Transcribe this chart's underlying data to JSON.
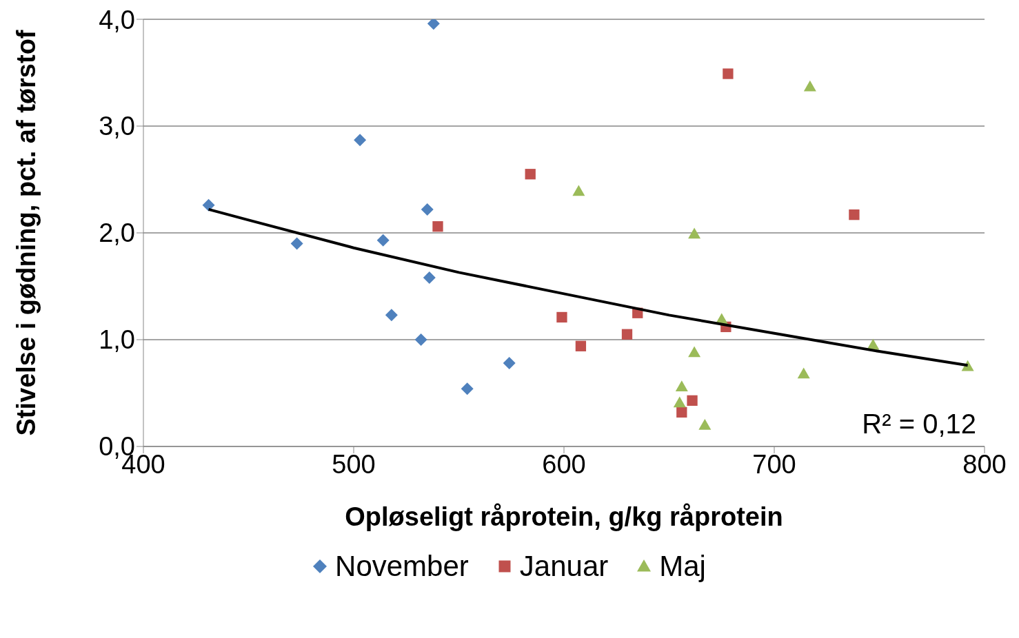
{
  "chart_data": {
    "type": "scatter",
    "xlabel": "Opløseligt råprotein, g/kg råprotein",
    "ylabel": "Stivelse i gødning, pct. af tørstof",
    "xlim": [
      400,
      800
    ],
    "xticks": [
      400,
      500,
      600,
      700,
      800
    ],
    "ylim": [
      0,
      4
    ],
    "yticks": [
      {
        "value": 0,
        "label": "0,0"
      },
      {
        "value": 1,
        "label": "1,0"
      },
      {
        "value": 2,
        "label": "2,0"
      },
      {
        "value": 3,
        "label": "3,0"
      },
      {
        "value": 4,
        "label": "4,0"
      }
    ],
    "grid": "y",
    "legend": "bottom",
    "series": [
      {
        "name": "November",
        "color": "#4f81bd",
        "marker": "diamond",
        "x": [
          431,
          473,
          503,
          538,
          535,
          514,
          536,
          518,
          532,
          554,
          574
        ],
        "values": [
          2.26,
          1.9,
          2.87,
          3.96,
          2.22,
          1.93,
          1.58,
          1.23,
          1.0,
          0.54,
          0.78
        ]
      },
      {
        "name": "Januar",
        "color": "#c0504d",
        "marker": "square",
        "x": [
          678,
          584,
          540,
          738,
          599,
          635,
          630,
          608,
          677,
          661,
          656
        ],
        "values": [
          3.49,
          2.55,
          2.06,
          2.17,
          1.21,
          1.25,
          1.05,
          0.94,
          1.12,
          0.43,
          0.32
        ]
      },
      {
        "name": "Maj",
        "color": "#9bbb59",
        "marker": "triangle",
        "x": [
          717,
          607,
          662,
          675,
          662,
          747,
          714,
          656,
          655,
          667,
          792
        ],
        "values": [
          3.37,
          2.39,
          1.99,
          1.19,
          0.88,
          0.95,
          0.68,
          0.56,
          0.41,
          0.2,
          0.75
        ]
      },
      {
        "type": "line",
        "color": "#000000",
        "marker": "none",
        "x": [
          431,
          450,
          500,
          550,
          600,
          650,
          700,
          750,
          792
        ],
        "values": [
          2.22,
          2.12,
          1.86,
          1.63,
          1.43,
          1.23,
          1.06,
          0.89,
          0.76
        ]
      }
    ],
    "annotations": [
      "R² = 0,12"
    ]
  }
}
